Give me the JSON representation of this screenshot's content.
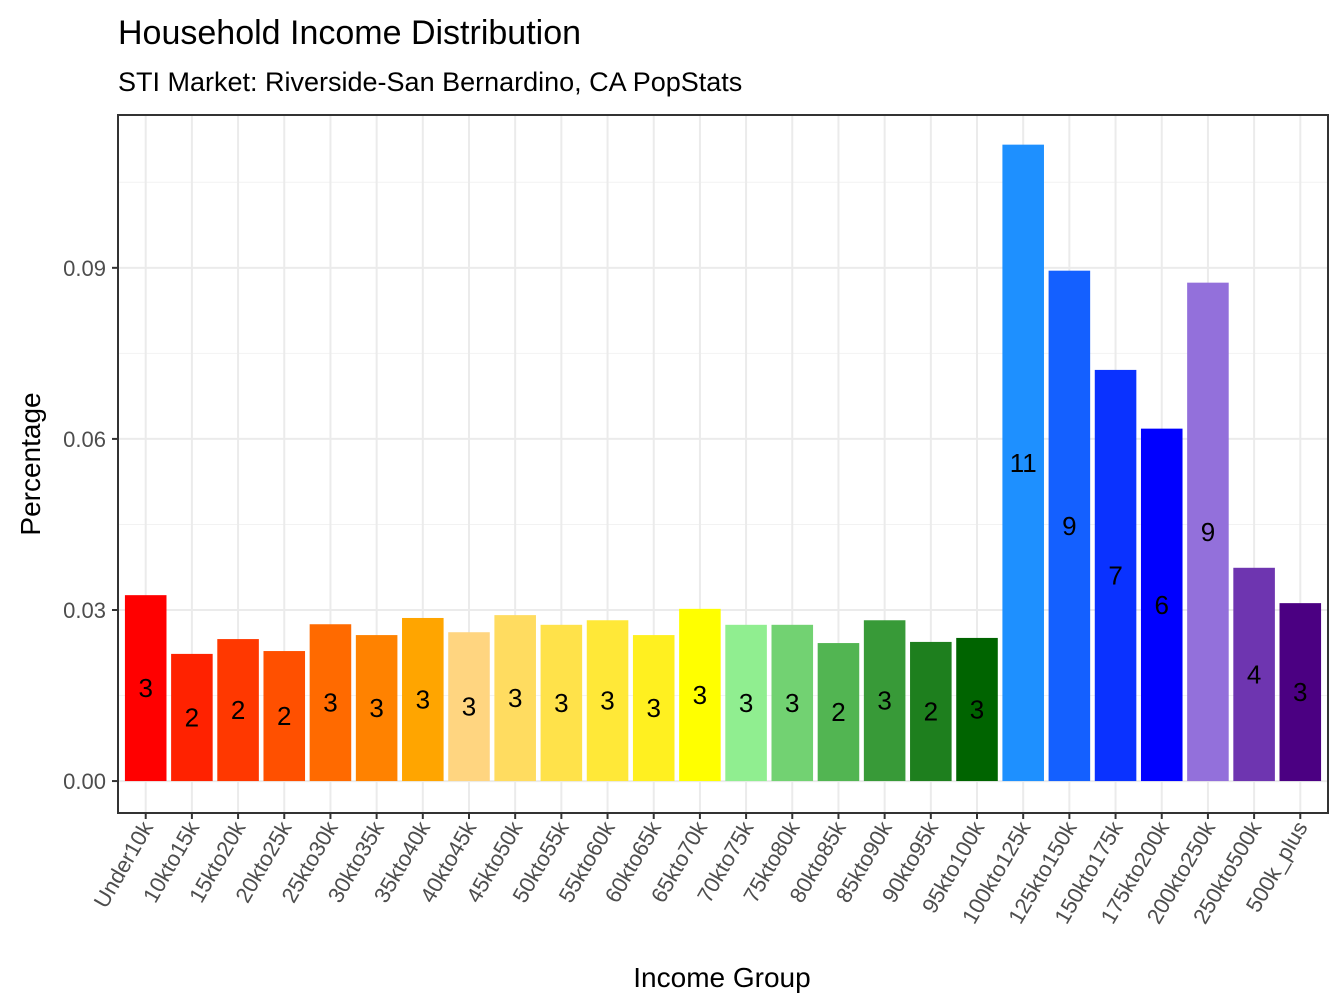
{
  "chart_data": {
    "type": "bar",
    "title": "Household Income Distribution",
    "subtitle": "STI Market: Riverside-San Bernardino, CA PopStats",
    "xlabel": "Income Group",
    "ylabel": "Percentage",
    "ylim": [
      -0.0056,
      0.1168
    ],
    "yticks": [
      0.0,
      0.03,
      0.06,
      0.09
    ],
    "ytick_labels": [
      "0.00",
      "0.03",
      "0.06",
      "0.09"
    ],
    "grid": true,
    "legend": "none",
    "categories": [
      "Under10k",
      "10kto15k",
      "15kto20k",
      "20kto25k",
      "25kto30k",
      "30kto35k",
      "35kto40k",
      "40kto45k",
      "45kto50k",
      "50kto55k",
      "55kto60k",
      "60kto65k",
      "65kto70k",
      "70kto75k",
      "75kto80k",
      "80kto85k",
      "85kto90k",
      "90kto95k",
      "95kto100k",
      "100kto125k",
      "125kto150k",
      "150kto175k",
      "175kto200k",
      "200kto250k",
      "250kto500k",
      "500k_plus"
    ],
    "values": [
      0.0326,
      0.0223,
      0.0249,
      0.0228,
      0.0275,
      0.0256,
      0.0286,
      0.0261,
      0.0291,
      0.0274,
      0.0282,
      0.0256,
      0.0302,
      0.0274,
      0.0274,
      0.0242,
      0.0282,
      0.0244,
      0.0251,
      0.1116,
      0.0895,
      0.0721,
      0.0618,
      0.0874,
      0.0374,
      0.0312
    ],
    "data_labels": [
      "3",
      "2",
      "2",
      "2",
      "3",
      "3",
      "3",
      "3",
      "3",
      "3",
      "3",
      "3",
      "3",
      "3",
      "3",
      "2",
      "3",
      "2",
      "3",
      "11",
      "9",
      "7",
      "6",
      "9",
      "4",
      "3"
    ],
    "colors": [
      "#FF0000",
      "#FF2200",
      "#FF3800",
      "#FF5000",
      "#FF6A00",
      "#FF8200",
      "#FFA500",
      "#FFD580",
      "#FFDC60",
      "#FFE24A",
      "#FFE838",
      "#FFF020",
      "#FFFF00",
      "#90EE90",
      "#72D272",
      "#52B552",
      "#389A38",
      "#1E7F1E",
      "#006400",
      "#1E90FF",
      "#1460FF",
      "#0A32FF",
      "#0000FF",
      "#9370DB",
      "#6E35B0",
      "#4B0082"
    ]
  }
}
